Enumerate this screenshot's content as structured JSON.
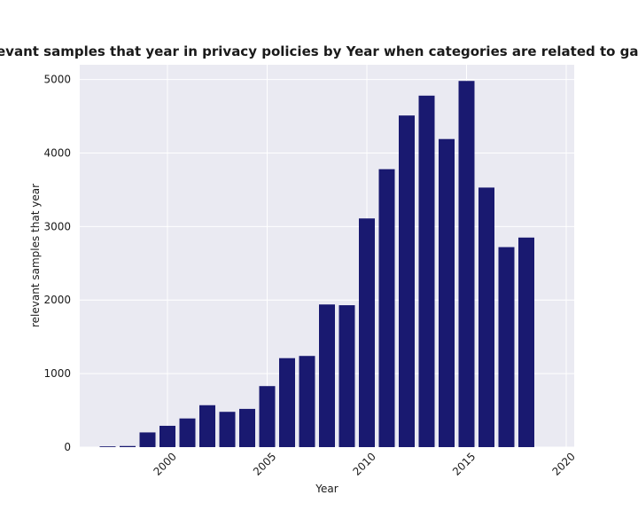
{
  "chart_data": {
    "type": "bar",
    "title": "relevant samples that year in privacy policies by Year when categories are related to gaming",
    "xlabel": "Year",
    "ylabel": "relevant samples that year",
    "x": [
      1997,
      1998,
      1999,
      2000,
      2001,
      2002,
      2003,
      2004,
      2005,
      2006,
      2007,
      2008,
      2009,
      2010,
      2011,
      2012,
      2013,
      2014,
      2015,
      2016,
      2017,
      2018,
      2019
    ],
    "values": [
      10,
      15,
      200,
      290,
      390,
      570,
      480,
      520,
      830,
      1210,
      1240,
      1940,
      1930,
      3110,
      3780,
      4510,
      4780,
      4190,
      4980,
      3530,
      2720,
      2850,
      0
    ],
    "xlim": [
      1995.6,
      2020.4
    ],
    "ylim": [
      0,
      5200
    ],
    "xticks": [
      "2000",
      "2005",
      "2010",
      "2015",
      "2020"
    ],
    "yticks": [
      "0",
      "1000",
      "2000",
      "3000",
      "4000",
      "5000"
    ],
    "grid": true,
    "bar_color": "#191970",
    "background_color": "#eaeaf2",
    "grid_color": "#ffffff"
  }
}
